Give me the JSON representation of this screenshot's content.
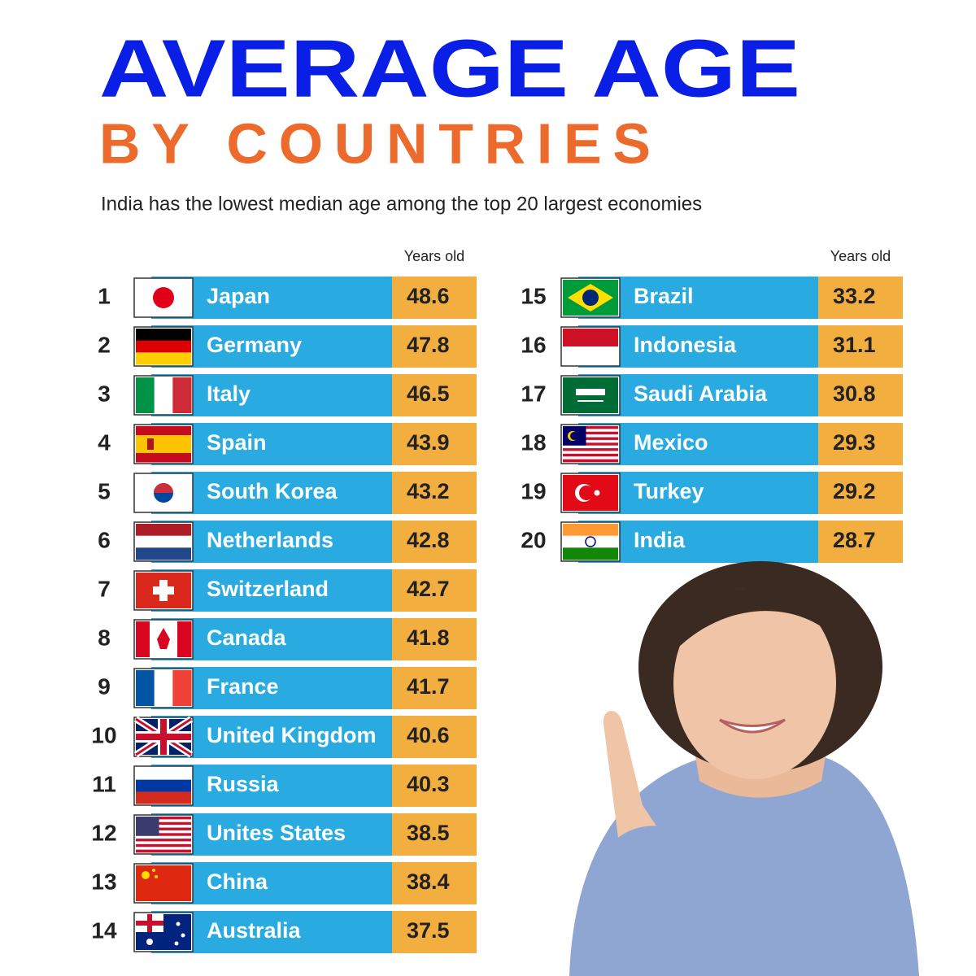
{
  "header": {
    "title": "AVERAGE AGE",
    "subtitle": "BY COUNTRIES",
    "description": "India has the lowest median age among the top 20 largest economies"
  },
  "tables": [
    {
      "column_header": "Years old",
      "rows": [
        {
          "rank": 1,
          "country": "Japan",
          "value": 48.6
        },
        {
          "rank": 2,
          "country": "Germany",
          "value": 47.8
        },
        {
          "rank": 3,
          "country": "Italy",
          "value": 46.5
        },
        {
          "rank": 4,
          "country": "Spain",
          "value": 43.9
        },
        {
          "rank": 5,
          "country": "South Korea",
          "value": 43.2
        },
        {
          "rank": 6,
          "country": "Netherlands",
          "value": 42.8
        },
        {
          "rank": 7,
          "country": "Switzerland",
          "value": 42.7
        },
        {
          "rank": 8,
          "country": "Canada",
          "value": 41.8
        },
        {
          "rank": 9,
          "country": "France",
          "value": 41.7
        },
        {
          "rank": 10,
          "country": "United Kingdom",
          "value": 40.6
        },
        {
          "rank": 11,
          "country": "Russia",
          "value": 40.3
        },
        {
          "rank": 12,
          "country": "Unites States",
          "value": 38.5
        },
        {
          "rank": 13,
          "country": "China",
          "value": 38.4
        },
        {
          "rank": 14,
          "country": "Australia",
          "value": 37.5
        }
      ]
    },
    {
      "column_header": "Years old",
      "rows": [
        {
          "rank": 15,
          "country": "Brazil",
          "value": 33.2
        },
        {
          "rank": 16,
          "country": "Indonesia",
          "value": 31.1
        },
        {
          "rank": 17,
          "country": "Saudi Arabia",
          "value": 30.8
        },
        {
          "rank": 18,
          "country": "Mexico",
          "value": 29.3
        },
        {
          "rank": 19,
          "country": "Turkey",
          "value": 29.2
        },
        {
          "rank": 20,
          "country": "India",
          "value": 28.7
        }
      ]
    }
  ]
}
